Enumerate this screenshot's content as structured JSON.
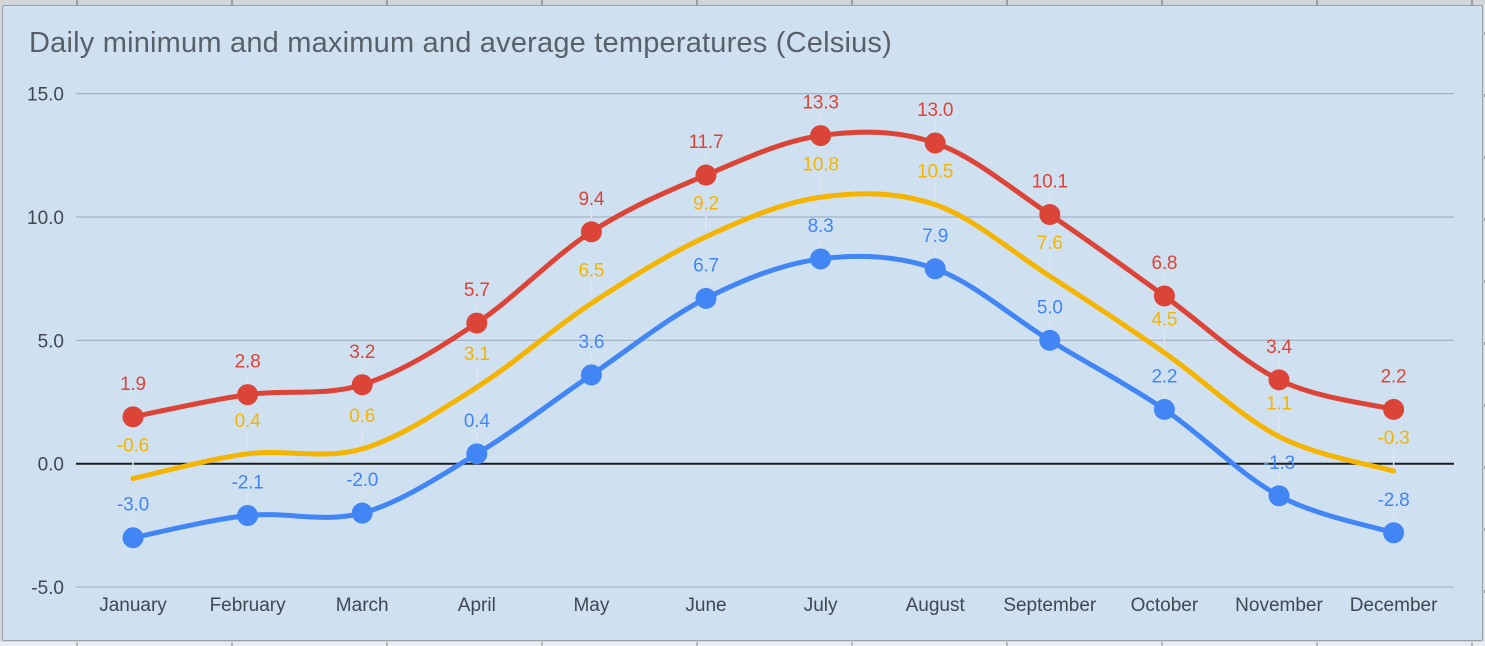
{
  "colors": {
    "chart_background": "#cfe1f1",
    "chart_border": "#9aa0a6",
    "gridline": "#a4b4c2",
    "zero_line": "#1c1c1c",
    "axis_text": "#3f4750",
    "title_text": "#5a6068",
    "leader_line": "#dfe6ed",
    "series_maximum": "#db4437",
    "series_average": "#f4b400",
    "series_minimum": "#4285f4"
  },
  "chart_data": {
    "type": "line",
    "title": "Daily minimum and maximum and average temperatures (Celsius)",
    "categories": [
      "January",
      "February",
      "March",
      "April",
      "May",
      "June",
      "July",
      "August",
      "September",
      "October",
      "November",
      "December"
    ],
    "series": [
      {
        "name": "maximum",
        "color": "#db4437",
        "point_markers": true,
        "values": [
          1.9,
          2.8,
          3.2,
          5.7,
          9.4,
          11.7,
          13.3,
          13.0,
          10.1,
          6.8,
          3.4,
          2.2
        ]
      },
      {
        "name": "average",
        "color": "#f4b400",
        "point_markers": false,
        "values": [
          -0.6,
          0.4,
          0.6,
          3.1,
          6.5,
          9.2,
          10.8,
          10.5,
          7.6,
          4.5,
          1.1,
          -0.3
        ]
      },
      {
        "name": "minimum",
        "color": "#4285f4",
        "point_markers": true,
        "values": [
          -3.0,
          -2.1,
          -2.0,
          0.4,
          3.6,
          6.7,
          8.3,
          7.9,
          5.0,
          2.2,
          -1.3,
          -2.8
        ]
      }
    ],
    "y_axis": {
      "ticks": [
        "15.0",
        "10.0",
        "5.0",
        "0.0",
        "-5.0"
      ],
      "range": [
        -5,
        15
      ]
    },
    "grid": true,
    "smooth_lines": true,
    "data_labels": true,
    "data_label_decimals": 1,
    "legend": "none"
  }
}
